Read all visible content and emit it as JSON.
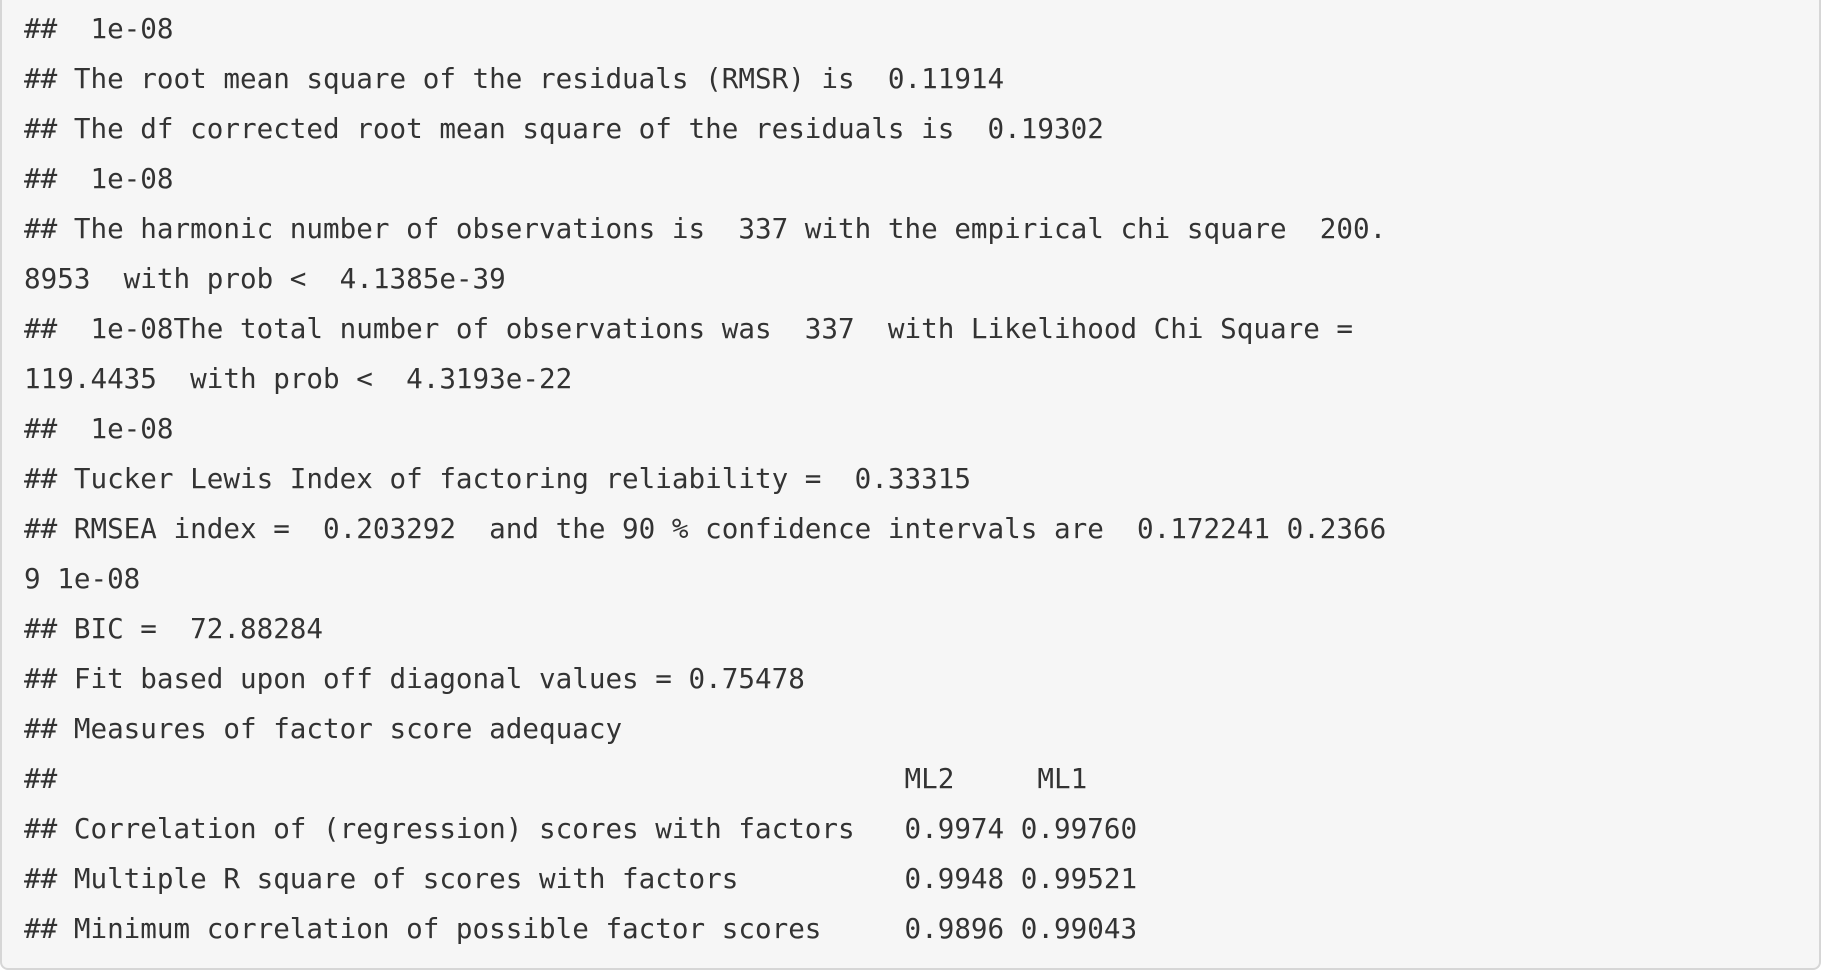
{
  "output_lines": [
    "##  1e-08",
    "## The root mean square of the residuals (RMSR) is  0.11914",
    "## The df corrected root mean square of the residuals is  0.19302",
    "##  1e-08",
    "## The harmonic number of observations is  337 with the empirical chi square  200.",
    "8953  with prob <  4.1385e-39",
    "##  1e-08The total number of observations was  337  with Likelihood Chi Square =",
    "119.4435  with prob <  4.3193e-22",
    "##  1e-08",
    "## Tucker Lewis Index of factoring reliability =  0.33315",
    "## RMSEA index =  0.203292  and the 90 % confidence intervals are  0.172241 0.2366",
    "9 1e-08",
    "## BIC =  72.88284",
    "## Fit based upon off diagonal values = 0.75478",
    "## Measures of factor score adequacy",
    "##                                                   ML2     ML1",
    "## Correlation of (regression) scores with factors   0.9974 0.99760",
    "## Multiple R square of scores with factors          0.9948 0.99521",
    "## Minimum correlation of possible factor scores     0.9896 0.99043"
  ]
}
